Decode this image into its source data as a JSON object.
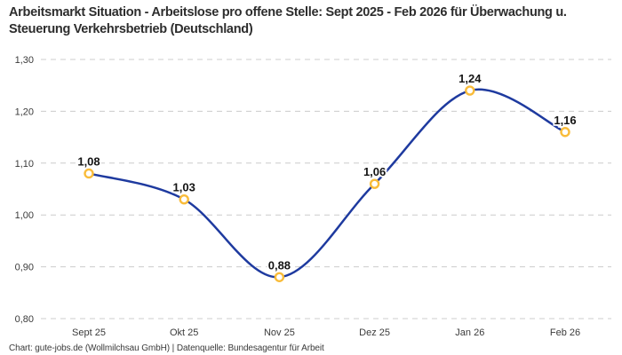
{
  "header": {
    "title": "Arbeitsmarkt Situation - Arbeitslose pro offene Stelle: Sept 2025 - Feb 2026 für Überwachung u. Steuerung Verkehrsbetrieb (Deutschland)"
  },
  "footer": {
    "text": "Chart: gute-jobs.de (Wollmilchsau GmbH) | Datenquelle: Bundesagentur für Arbeit"
  },
  "chart_data": {
    "type": "line",
    "title": "Arbeitsmarkt Situation - Arbeitslose pro offene Stelle: Sept 2025 - Feb 2026 für Überwachung u. Steuerung Verkehrsbetrieb (Deutschland)",
    "categories": [
      "Sept 25",
      "Okt 25",
      "Nov 25",
      "Dez 25",
      "Jan 26",
      "Feb 26"
    ],
    "values": [
      1.08,
      1.03,
      0.88,
      1.06,
      1.24,
      1.16
    ],
    "value_labels": [
      "1,08",
      "1,03",
      "0,88",
      "1,06",
      "1,24",
      "1,16"
    ],
    "y_ticks": [
      {
        "value": 1.3,
        "label": "1,30"
      },
      {
        "value": 1.2,
        "label": "1,20"
      },
      {
        "value": 1.1,
        "label": "1,10"
      },
      {
        "value": 1.0,
        "label": "1,00"
      },
      {
        "value": 0.9,
        "label": "0,90"
      },
      {
        "value": 0.8,
        "label": "0,80"
      }
    ],
    "ylim": [
      0.8,
      1.3
    ],
    "xlabel": "",
    "ylabel": "",
    "grid": "horizontal-dashed",
    "legend": "none",
    "colors": {
      "line": "#1e3a9f",
      "marker_ring": "#f9bc3a",
      "marker_fill": "#ffffff",
      "gridline": "#cccccc",
      "tick_text": "#3a3a3a",
      "value_text": "#141414",
      "title_text": "#2d2d2d"
    }
  }
}
